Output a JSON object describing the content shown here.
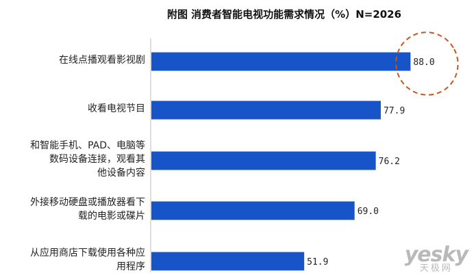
{
  "title": "附图  消费者智能电视功能需求情况（%）N=2026",
  "chart_data": {
    "type": "bar",
    "orientation": "horizontal",
    "categories": [
      "在线点播观看影视剧",
      "收看电视节目",
      "和智能手机、PAD、电脑等\n数码设备连接，观看其\n他设备内容",
      "外接移动硬盘或播放器看下\n载的电影或碟片",
      "从应用商店下载使用各种应\n用程序"
    ],
    "values": [
      88.0,
      77.9,
      76.2,
      69.0,
      51.9
    ],
    "value_labels": [
      "88.0",
      "77.9",
      "76.2",
      "69.0",
      "51.9"
    ],
    "bar_color": "#1654c8",
    "highlight": "dashed orange ellipse around 88.0",
    "highlight_color": "#c8551e",
    "xlim": [
      0,
      100
    ],
    "grid": false,
    "axis_line": "vertical category axis, no value axis"
  },
  "watermark": {
    "main": "yesky",
    "sub": "天极网"
  }
}
